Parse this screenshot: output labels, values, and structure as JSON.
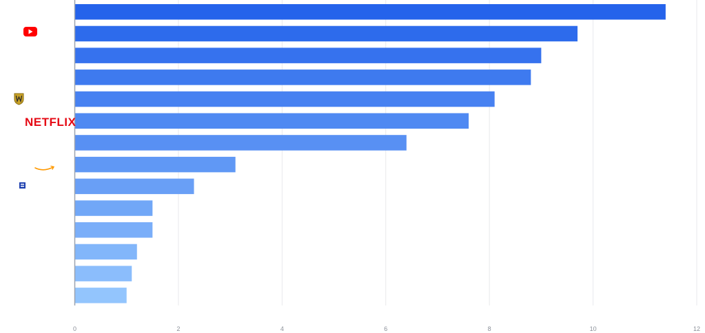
{
  "chart_data": {
    "type": "bar",
    "orientation": "horizontal",
    "title": "",
    "xlabel": "",
    "ylabel": "",
    "xlim": [
      0,
      12
    ],
    "x_ticks": [
      "0",
      "2",
      "4",
      "6",
      "8",
      "10",
      "12"
    ],
    "grid": "vertical",
    "legend": "none",
    "values": [
      11.4,
      9.7,
      9.0,
      8.8,
      8.1,
      7.6,
      6.4,
      3.1,
      2.3,
      1.5,
      1.5,
      1.2,
      1.1,
      1.0
    ],
    "category_logos": [
      "blank",
      "youtube-logo",
      "blank",
      "blank",
      "warner-bros-logo",
      "netflix-logo",
      "blank",
      "amazon-logo",
      "small-network-logo",
      "blank",
      "blank",
      "blank",
      "blank",
      "blank"
    ],
    "logo_text": {
      "netflix": "NETFLIX"
    },
    "colors": {
      "bar_start": "#2563eb",
      "bar_end": "#93c5fd",
      "gridline": "#e8e9ec",
      "axis": "#9ca3af",
      "tick_text": "#8a8f98",
      "youtube_red": "#ff0000",
      "netflix_red": "#e50914",
      "amazon_orange": "#ff9900",
      "wb_gold": "#c9a227"
    }
  }
}
